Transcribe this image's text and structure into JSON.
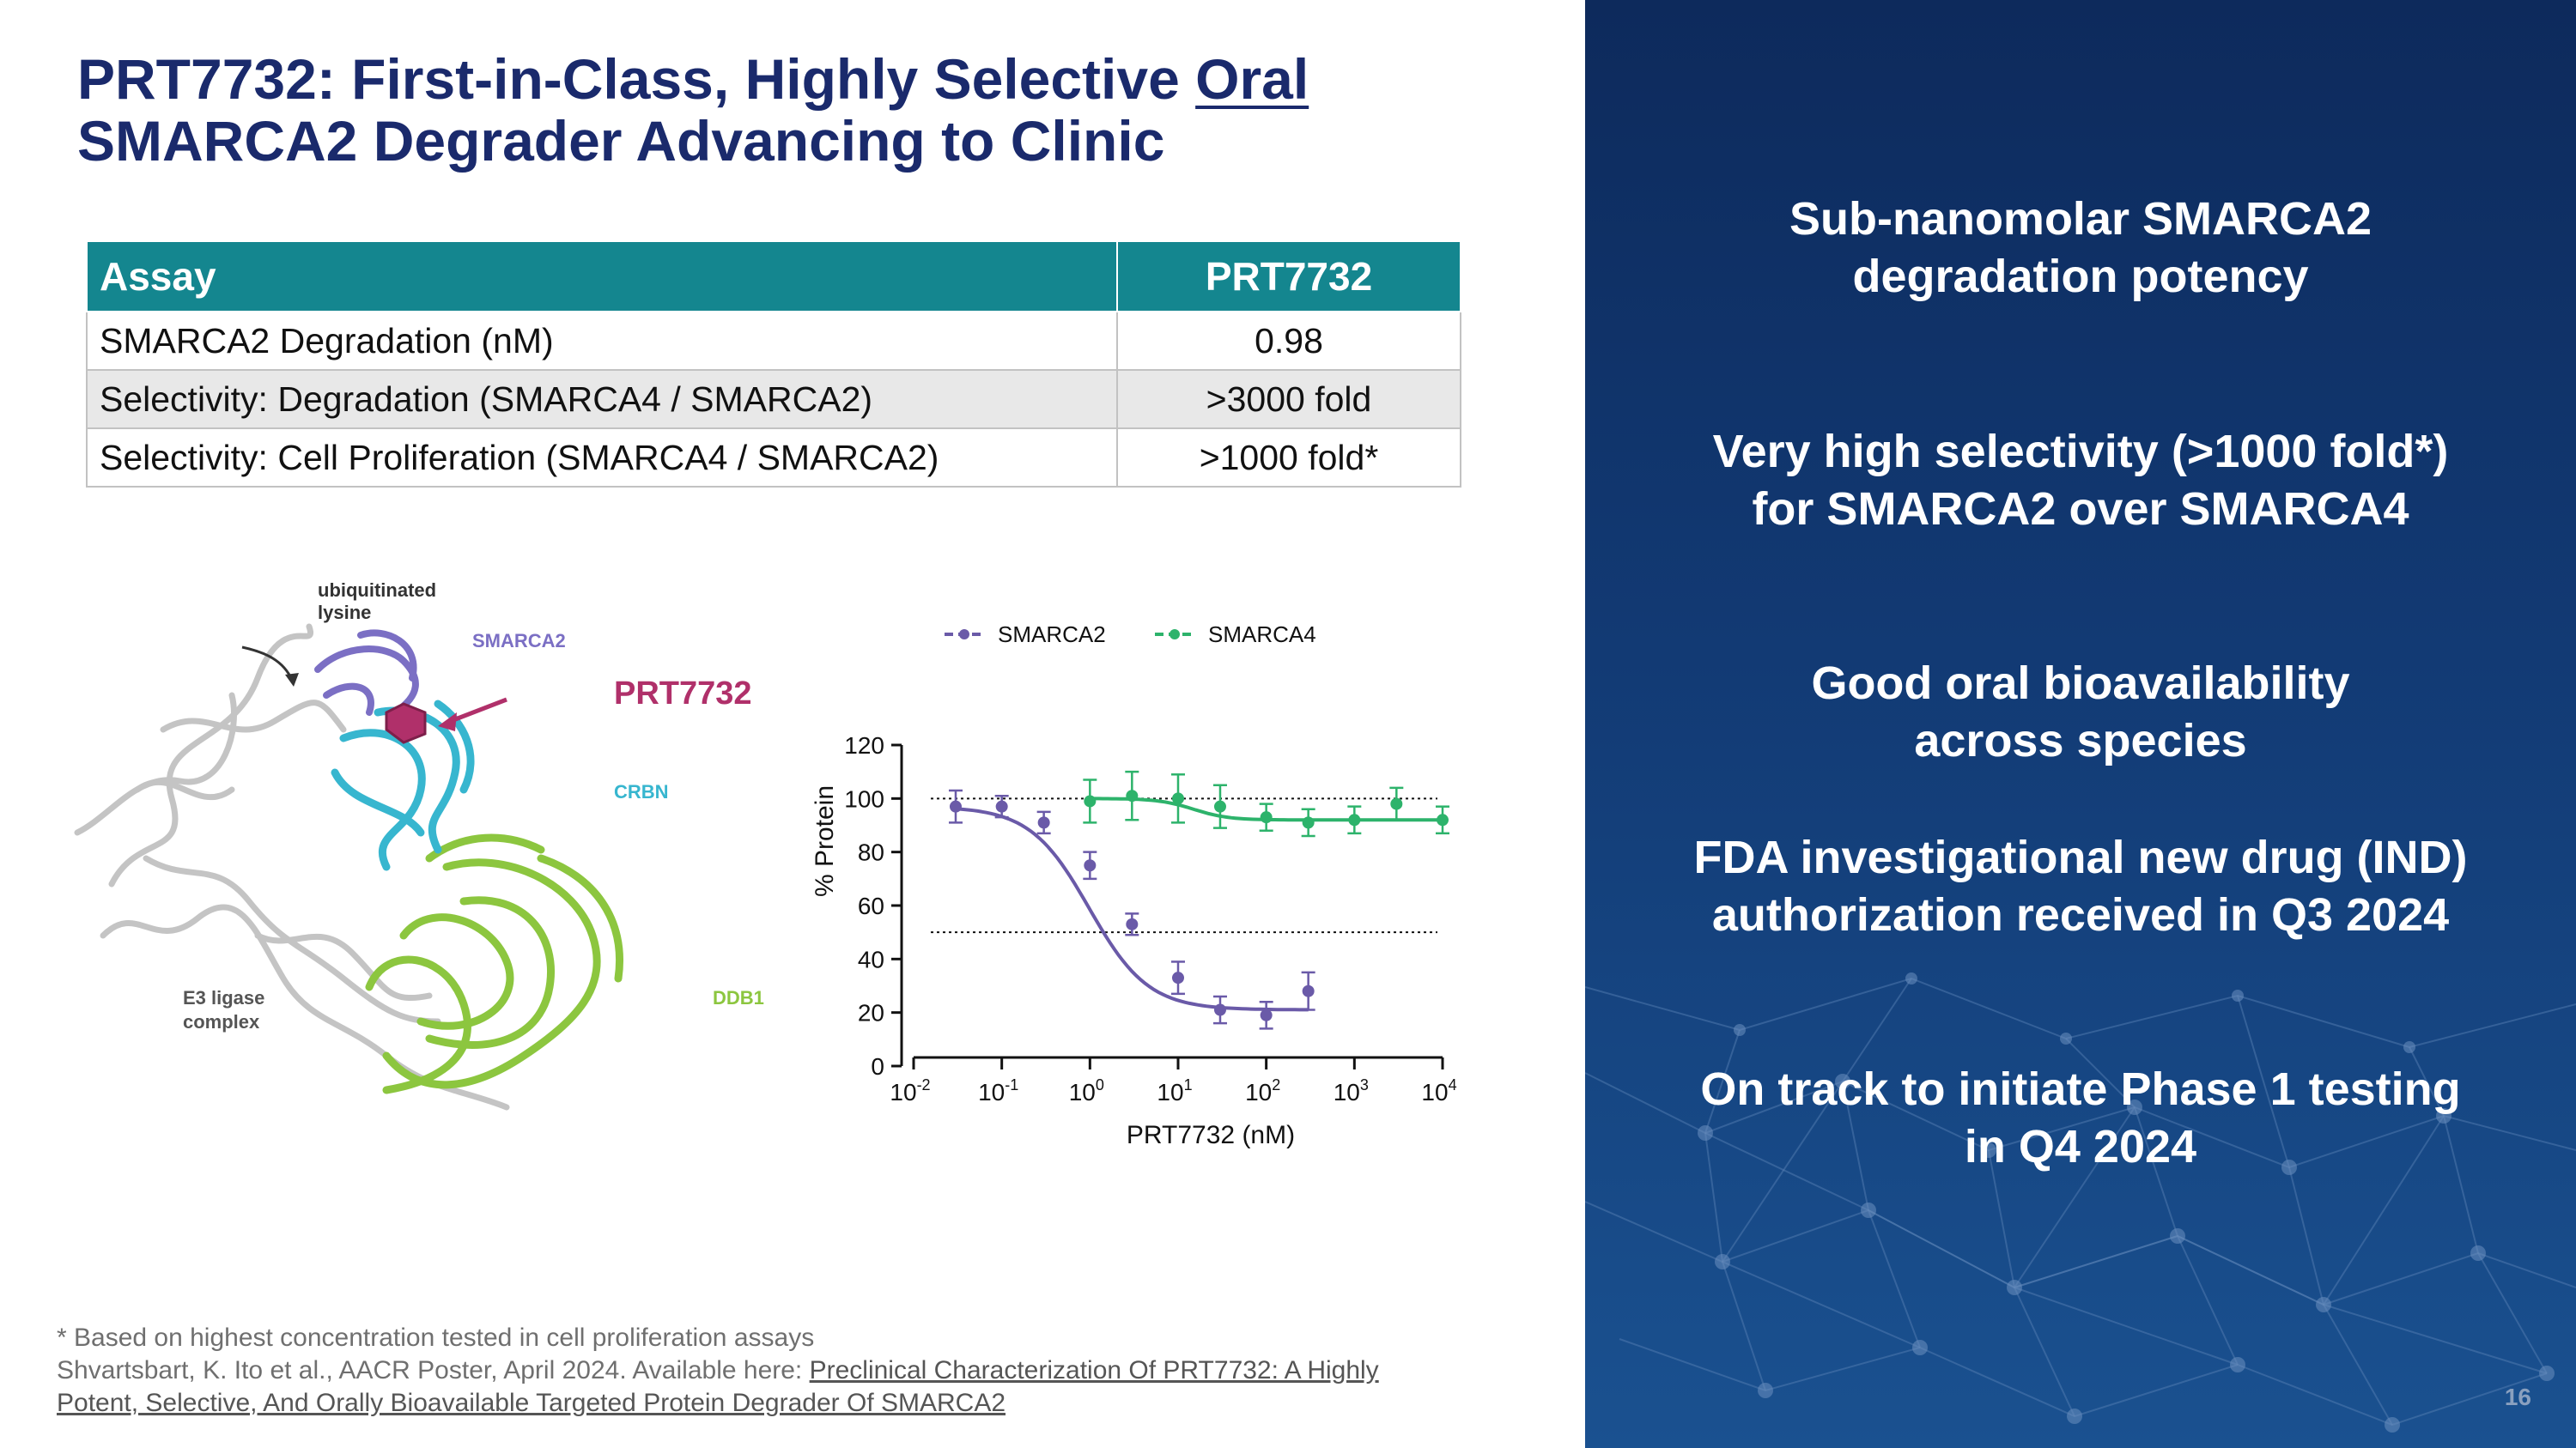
{
  "title": {
    "line1_prefix": "PRT7732:  First-in-Class, Highly Selective ",
    "line1_underlined": "Oral",
    "line2": "SMARCA2 Degrader Advancing to Clinic"
  },
  "table": {
    "headers": [
      "Assay",
      "PRT7732"
    ],
    "rows": [
      [
        "SMARCA2 Degradation (nM)",
        "0.98"
      ],
      [
        "Selectivity: Degradation (SMARCA4 / SMARCA2)",
        ">3000 fold"
      ],
      [
        "Selectivity: Cell Proliferation (SMARCA4 / SMARCA2)",
        ">1000 fold*"
      ]
    ]
  },
  "structure_figure": {
    "labels": {
      "ubiquitinated_lysine_1": "ubiquitinated",
      "ubiquitinated_lysine_2": "lysine",
      "smarca2": "SMARCA2",
      "prt7732": "PRT7732",
      "crbn": "CRBN",
      "ddb1": "DDB1",
      "e3_ligase_1": "E3 ligase",
      "e3_ligase_2": "complex"
    },
    "colors": {
      "smarca2": "#7b6fc4",
      "prt7732": "#b0306a",
      "crbn": "#37b6cf",
      "ddb1": "#8cc63f",
      "e3": "#c9c9c9"
    }
  },
  "chart_data": {
    "type": "line",
    "xlabel": "PRT7732 (nM)",
    "ylabel": "% Protein",
    "x_scale": "log",
    "xlim": [
      0.01,
      10000
    ],
    "ylim": [
      0,
      120
    ],
    "y_ticks": [
      "0",
      "20",
      "40",
      "60",
      "80",
      "100",
      "120"
    ],
    "x_tick_bases": [
      "10",
      "10",
      "10",
      "10",
      "10",
      "10",
      "10"
    ],
    "x_tick_exponents": [
      "-2",
      "-1",
      "0",
      "1",
      "2",
      "3",
      "4"
    ],
    "reference_lines": [
      100,
      50
    ],
    "legend_position": "top",
    "grid": false,
    "series": [
      {
        "name": "SMARCA2",
        "color": "#6a5aa8",
        "x": [
          0.03,
          0.1,
          0.3,
          1,
          3,
          10,
          30,
          100,
          300
        ],
        "y": [
          97,
          97,
          91,
          75,
          53,
          33,
          21,
          19,
          28
        ],
        "err": [
          6,
          4,
          4,
          5,
          4,
          6,
          5,
          5,
          7
        ]
      },
      {
        "name": "SMARCA4",
        "color": "#2db36b",
        "x": [
          1,
          3,
          10,
          30,
          100,
          300,
          1000,
          3000,
          10000
        ],
        "y": [
          99,
          101,
          100,
          97,
          93,
          91,
          92,
          98,
          92
        ],
        "err": [
          8,
          9,
          9,
          8,
          5,
          5,
          5,
          6,
          5
        ]
      }
    ],
    "fitted_curves": true
  },
  "footnotes": {
    "line1": "* Based on highest concentration tested in cell proliferation assays",
    "line2_prefix": "Shvartsbart, K. Ito et al., AACR Poster, April 2024. Available here: ",
    "link_line1": "Preclinical Characterization Of PRT7732: A Highly",
    "link_line2": "Potent, Selective, And Orally Bioavailable Targeted Protein Degrader Of SMARCA2"
  },
  "panel": {
    "bullets": [
      {
        "l1": "Sub-nanomolar SMARCA2",
        "l2": "degradation potency"
      },
      {
        "l1": "Very high selectivity (>1000 fold*)",
        "l2": "for SMARCA2 over SMARCA4"
      },
      {
        "l1": "Good oral bioavailability",
        "l2": "across species"
      },
      {
        "l1": "FDA investigational new drug (IND)",
        "l2": "authorization received in Q3 2024"
      },
      {
        "l1": "On track to initiate Phase 1 testing",
        "l2": "in Q4 2024"
      }
    ],
    "page_number": "16"
  }
}
